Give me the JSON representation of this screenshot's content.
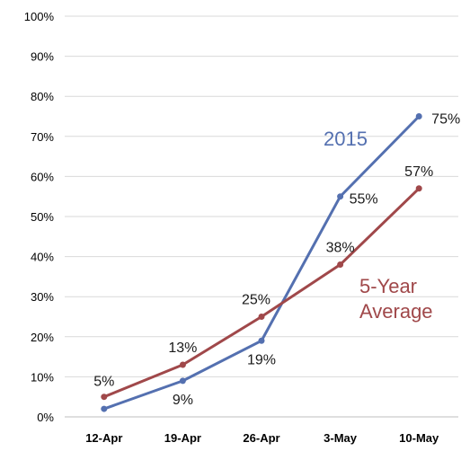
{
  "chart_data": {
    "type": "line",
    "categories": [
      "12-Apr",
      "19-Apr",
      "26-Apr",
      "3-May",
      "10-May"
    ],
    "y_ticks": [
      "0%",
      "10%",
      "20%",
      "30%",
      "40%",
      "50%",
      "60%",
      "70%",
      "80%",
      "90%",
      "100%"
    ],
    "ylim": [
      0,
      100
    ],
    "grid": true,
    "series": [
      {
        "name": "2015",
        "color": "#5470b0",
        "values": [
          2,
          9,
          19,
          55,
          75
        ],
        "data_labels": [
          "",
          "9%",
          "19%",
          "55%",
          "75%"
        ]
      },
      {
        "name": "5-Year Average",
        "label_lines": [
          "5-Year",
          "Average"
        ],
        "color": "#a0484a",
        "values": [
          5,
          13,
          25,
          38,
          57
        ],
        "data_labels": [
          "5%",
          "13%",
          "25%",
          "38%",
          "57%"
        ]
      }
    ]
  }
}
